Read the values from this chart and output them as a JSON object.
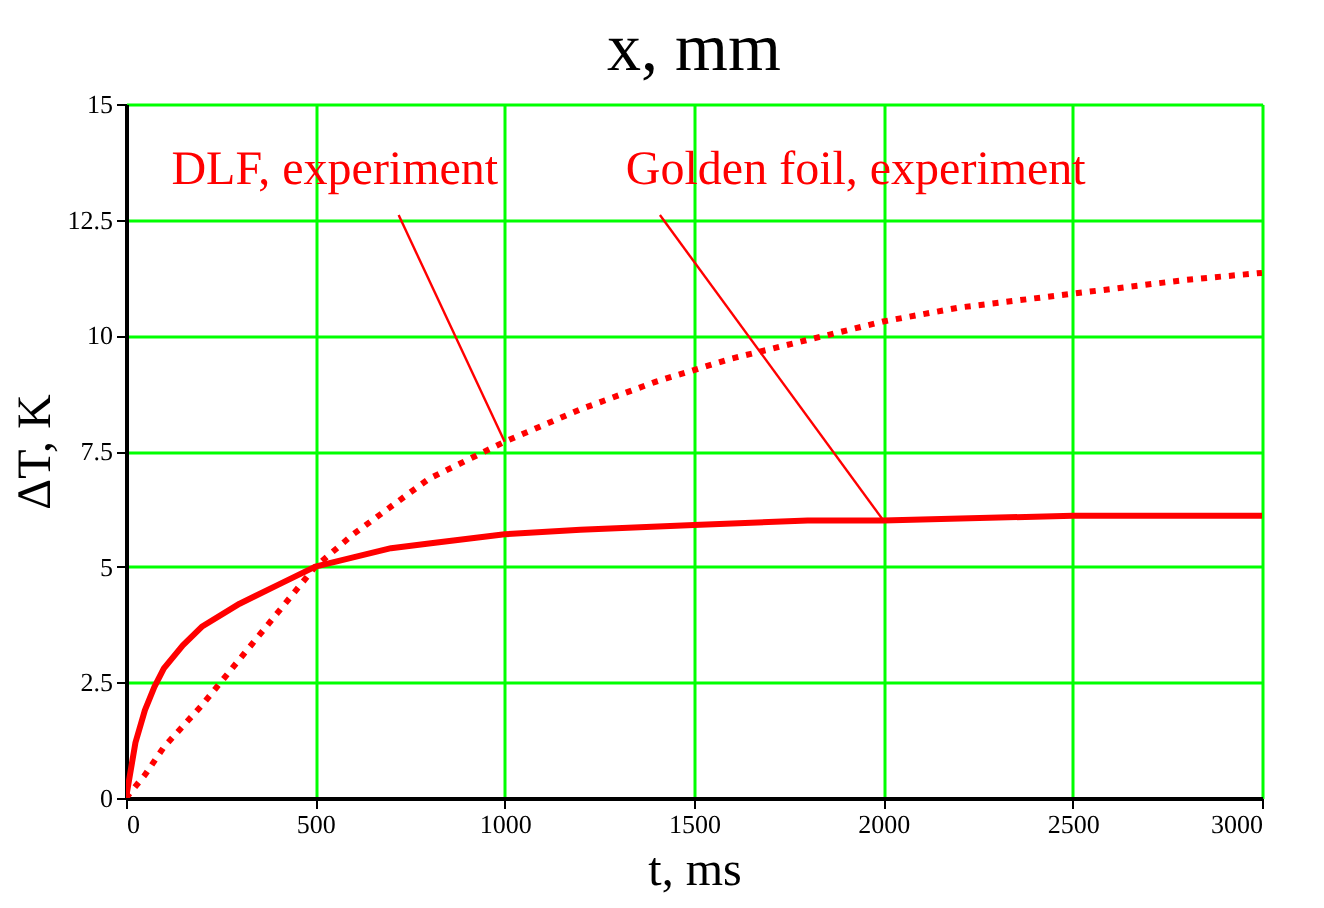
{
  "chart_data": {
    "type": "line",
    "title": "x, mm",
    "xlabel": "t, ms",
    "ylabel": "ΔT, K",
    "xlim": [
      0,
      3000
    ],
    "xticks": [
      0,
      500,
      1000,
      1500,
      2000,
      2500,
      3000
    ],
    "ylim": [
      0,
      15
    ],
    "yticks": [
      0,
      2.5,
      5,
      7.5,
      10,
      12.5,
      15
    ],
    "grid": true,
    "series": [
      {
        "name": "DLF, experiment",
        "color": "#ff0000",
        "line_style": "dotted",
        "x": [
          0,
          50,
          100,
          200,
          300,
          400,
          500,
          600,
          700,
          800,
          1000,
          1200,
          1400,
          1600,
          1800,
          2000,
          2200,
          2500,
          2800,
          3000
        ],
        "values": [
          0,
          0.5,
          1.1,
          2.0,
          3.0,
          4.0,
          5.0,
          5.7,
          6.3,
          6.9,
          7.7,
          8.4,
          9.0,
          9.5,
          9.9,
          10.3,
          10.6,
          10.9,
          11.2,
          11.35
        ]
      },
      {
        "name": "Golden foil, experiment",
        "color": "#ff0000",
        "line_style": "solid",
        "x": [
          0,
          25,
          50,
          75,
          100,
          150,
          200,
          300,
          400,
          500,
          600,
          700,
          800,
          1000,
          1200,
          1500,
          1800,
          2000,
          2500,
          3000
        ],
        "values": [
          0,
          1.2,
          1.9,
          2.4,
          2.8,
          3.3,
          3.7,
          4.2,
          4.6,
          5.0,
          5.2,
          5.4,
          5.5,
          5.7,
          5.8,
          5.9,
          6.0,
          6.0,
          6.1,
          6.1
        ]
      }
    ]
  }
}
